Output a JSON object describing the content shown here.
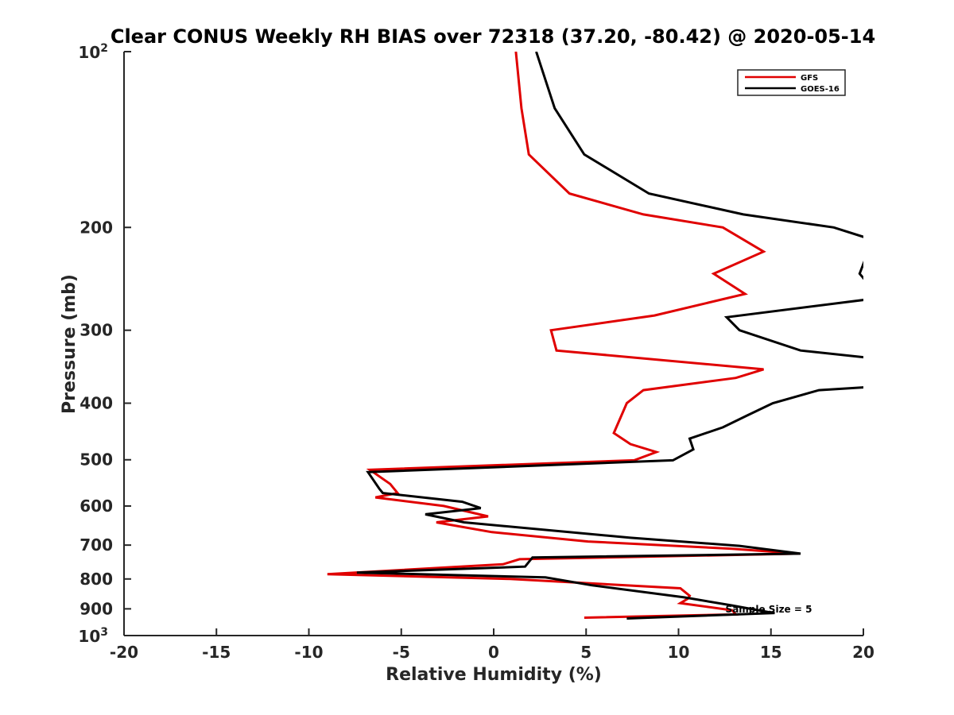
{
  "chart_data": {
    "type": "line",
    "title": "Clear CONUS Weekly RH BIAS over 72318 (37.20, -80.42) @ 2020-05-14",
    "xlabel": "Relative Humidity (%)",
    "ylabel": "Pressure (mb)",
    "xlim": [
      -20,
      20
    ],
    "ylim": [
      100,
      1000
    ],
    "yscale": "log",
    "y_reversed": true,
    "grid": false,
    "legend_position": "top-right",
    "x_ticks": [
      "-20",
      "-15",
      "-10",
      "-5",
      "0",
      "5",
      "10",
      "15",
      "20"
    ],
    "y_ticks": [
      {
        "value": 100,
        "base": "10",
        "exp": "2"
      },
      {
        "value": 200,
        "label": "200"
      },
      {
        "value": 300,
        "label": "300"
      },
      {
        "value": 400,
        "label": "400"
      },
      {
        "value": 500,
        "label": "500"
      },
      {
        "value": 600,
        "label": "600"
      },
      {
        "value": 700,
        "label": "700"
      },
      {
        "value": 800,
        "label": "800"
      },
      {
        "value": 900,
        "label": "900"
      },
      {
        "value": 1000,
        "base": "10",
        "exp": "3"
      }
    ],
    "annotation": "Sample Size = 5",
    "series": [
      {
        "name": "GFS",
        "color": "#e00000",
        "points": [
          [
            1.2,
            100
          ],
          [
            1.5,
            125
          ],
          [
            1.9,
            150
          ],
          [
            4.1,
            175
          ],
          [
            8.1,
            190
          ],
          [
            12.4,
            200
          ],
          [
            14.6,
            220
          ],
          [
            11.9,
            240
          ],
          [
            13.6,
            260
          ],
          [
            8.7,
            283
          ],
          [
            3.1,
            300
          ],
          [
            3.4,
            325
          ],
          [
            14.6,
            350
          ],
          [
            13.1,
            362
          ],
          [
            8.1,
            380
          ],
          [
            7.2,
            400
          ],
          [
            6.5,
            450
          ],
          [
            7.4,
            470
          ],
          [
            8.8,
            485
          ],
          [
            7.6,
            501
          ],
          [
            -6.7,
            520
          ],
          [
            -5.6,
            550
          ],
          [
            -5.2,
            570
          ],
          [
            -6.4,
            580
          ],
          [
            -2.7,
            600
          ],
          [
            -0.3,
            625
          ],
          [
            -3.1,
            640
          ],
          [
            -0.1,
            665
          ],
          [
            5.1,
            690
          ],
          [
            12.9,
            710
          ],
          [
            16.5,
            724
          ],
          [
            1.4,
            740
          ],
          [
            0.5,
            755
          ],
          [
            -9.0,
            785
          ],
          [
            0.9,
            800
          ],
          [
            10.1,
            830
          ],
          [
            10.6,
            855
          ],
          [
            10.5,
            865
          ],
          [
            10.1,
            880
          ],
          [
            12.9,
            905
          ],
          [
            13.1,
            920
          ],
          [
            4.9,
            932
          ]
        ]
      },
      {
        "name": "GOES-16",
        "color": "#000000",
        "points": [
          [
            2.3,
            100
          ],
          [
            3.3,
            125
          ],
          [
            4.9,
            150
          ],
          [
            8.4,
            175
          ],
          [
            13.5,
            190
          ],
          [
            18.4,
            200
          ],
          [
            20.5,
            210
          ],
          [
            19.8,
            240
          ],
          [
            20.5,
            255
          ],
          [
            20.5,
            265
          ],
          [
            12.6,
            285
          ],
          [
            13.3,
            300
          ],
          [
            16.6,
            325
          ],
          [
            20.5,
            335
          ],
          [
            20.5,
            375
          ],
          [
            17.6,
            380
          ],
          [
            15.1,
            400
          ],
          [
            13.7,
            420
          ],
          [
            12.4,
            440
          ],
          [
            10.6,
            460
          ],
          [
            10.8,
            480
          ],
          [
            9.7,
            501
          ],
          [
            -6.8,
            525
          ],
          [
            -6.2,
            560
          ],
          [
            -6.0,
            570
          ],
          [
            -1.7,
            590
          ],
          [
            -0.7,
            605
          ],
          [
            -3.7,
            620
          ],
          [
            -1.6,
            640
          ],
          [
            7.4,
            680
          ],
          [
            13.3,
            702
          ],
          [
            16.6,
            724
          ],
          [
            2.1,
            735
          ],
          [
            1.7,
            762
          ],
          [
            -7.4,
            780
          ],
          [
            2.8,
            795
          ],
          [
            5.3,
            820
          ],
          [
            10.3,
            860
          ],
          [
            12.9,
            888
          ],
          [
            14.9,
            912
          ],
          [
            15.2,
            915
          ],
          [
            7.2,
            935
          ]
        ]
      }
    ]
  }
}
